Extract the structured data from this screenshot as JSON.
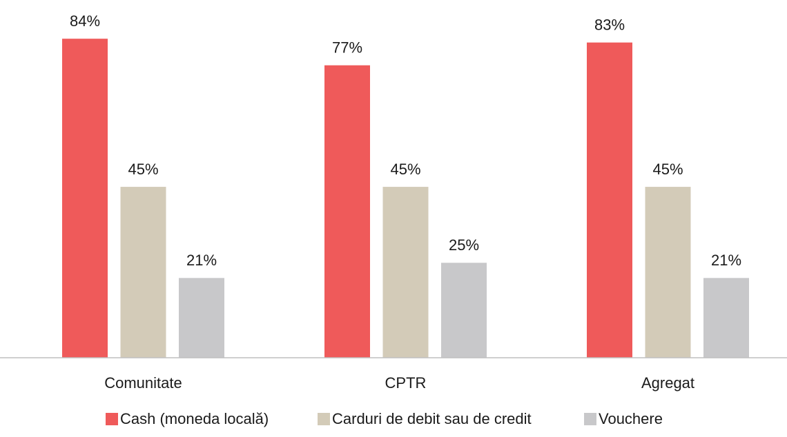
{
  "chart_data": {
    "type": "bar",
    "categories": [
      "Comunitate",
      "CPTR",
      "Agregat"
    ],
    "series": [
      {
        "name": "Cash (moneda locală)",
        "color": "#ef5a5a",
        "values": [
          84,
          77,
          83
        ],
        "value_labels": [
          "84%",
          "77%",
          "83%"
        ]
      },
      {
        "name": "Carduri de debit sau de credit",
        "color": "#d3cbb8",
        "values": [
          45,
          45,
          45
        ],
        "value_labels": [
          "45%",
          "45%",
          "45%"
        ]
      },
      {
        "name": "Vouchere",
        "color": "#c8c8ca",
        "values": [
          21,
          25,
          21
        ],
        "value_labels": [
          "21%",
          "25%",
          "21%"
        ]
      }
    ]
  }
}
